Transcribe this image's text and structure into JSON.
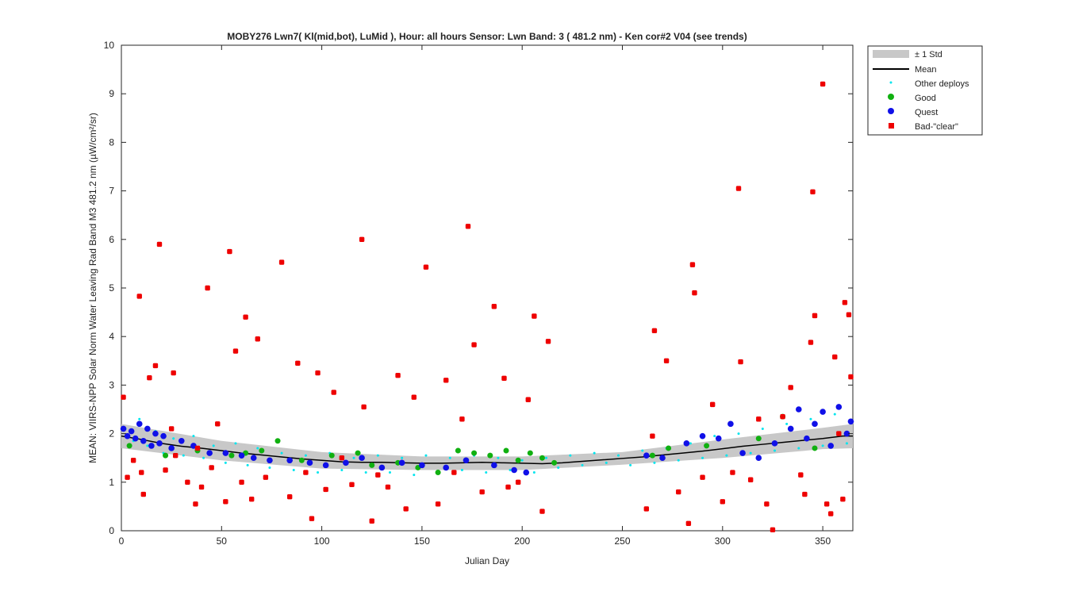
{
  "chart_data": {
    "type": "scatter",
    "title": "MOBY276   Lwn7( Kl(mid,bot), LuMid ),   Hour: all hours  Sensor: Lwn Band: 3 ( 481.2 nm)  - Ken cor#2 V04 (see trends)",
    "xlabel": "Julian Day",
    "ylabel": "MEAN: VIIRS-NPP Solar Norm Water Leaving Rad Band M3 481.2 nm (µW/cm²/sr)",
    "xlim": [
      0,
      365
    ],
    "ylim": [
      0,
      10
    ],
    "x_ticks": [
      "0",
      "50",
      "100",
      "150",
      "200",
      "250",
      "300",
      "350"
    ],
    "y_ticks": [
      "0",
      "1",
      "2",
      "3",
      "4",
      "5",
      "6",
      "7",
      "8",
      "9",
      "10"
    ],
    "grid": false,
    "legend_position": "outside-top-right",
    "legend": [
      "± 1 Std",
      "Mean",
      "Other deploys",
      "Good",
      "Quest",
      "Bad-\"clear\""
    ],
    "colors": {
      "std_band": "#c8c8c8",
      "mean": "#000000",
      "other": "#00e5ee",
      "good": "#10b010",
      "quest": "#1010e8",
      "bad": "#ee0000"
    },
    "series": [
      {
        "name": "Mean",
        "x": [
          0,
          10,
          20,
          30,
          40,
          50,
          60,
          70,
          80,
          90,
          100,
          110,
          120,
          130,
          140,
          150,
          160,
          170,
          180,
          190,
          200,
          210,
          220,
          230,
          240,
          250,
          260,
          270,
          280,
          290,
          300,
          310,
          320,
          330,
          340,
          350,
          360,
          365
        ],
        "y": [
          1.95,
          1.88,
          1.8,
          1.74,
          1.7,
          1.65,
          1.6,
          1.56,
          1.52,
          1.48,
          1.45,
          1.42,
          1.41,
          1.41,
          1.4,
          1.39,
          1.39,
          1.4,
          1.41,
          1.4,
          1.39,
          1.38,
          1.4,
          1.43,
          1.46,
          1.49,
          1.52,
          1.56,
          1.6,
          1.64,
          1.69,
          1.74,
          1.78,
          1.82,
          1.86,
          1.9,
          1.95,
          1.95
        ]
      },
      {
        "name": "± 1 Std",
        "x": [
          0,
          50,
          100,
          150,
          200,
          250,
          300,
          350,
          365
        ],
        "lower": [
          1.7,
          1.45,
          1.28,
          1.25,
          1.25,
          1.36,
          1.5,
          1.68,
          1.7
        ],
        "upper": [
          2.2,
          1.85,
          1.62,
          1.53,
          1.53,
          1.62,
          1.88,
          2.12,
          2.2
        ]
      },
      {
        "name": "Other deploys",
        "x": [
          2,
          6,
          9,
          13,
          17,
          21,
          26,
          31,
          36,
          41,
          46,
          52,
          57,
          63,
          68,
          74,
          80,
          86,
          92,
          98,
          104,
          110,
          116,
          122,
          128,
          134,
          140,
          146,
          152,
          158,
          164,
          170,
          176,
          182,
          188,
          194,
          200,
          206,
          212,
          218,
          224,
          230,
          236,
          242,
          248,
          254,
          260,
          266,
          272,
          278,
          284,
          290,
          296,
          302,
          308,
          314,
          320,
          326,
          332,
          338,
          344,
          350,
          356,
          362
        ],
        "y": [
          2.1,
          1.85,
          2.3,
          1.75,
          2.05,
          1.6,
          1.9,
          1.55,
          1.95,
          1.5,
          1.75,
          1.4,
          1.8,
          1.35,
          1.7,
          1.3,
          1.6,
          1.25,
          1.55,
          1.2,
          1.6,
          1.25,
          1.5,
          1.2,
          1.55,
          1.2,
          1.5,
          1.15,
          1.55,
          1.2,
          1.5,
          1.25,
          1.55,
          1.2,
          1.5,
          1.25,
          1.45,
          1.2,
          1.5,
          1.3,
          1.55,
          1.35,
          1.6,
          1.4,
          1.55,
          1.35,
          1.65,
          1.4,
          1.7,
          1.45,
          1.8,
          1.5,
          1.95,
          1.55,
          2.0,
          1.6,
          2.1,
          1.65,
          2.2,
          1.7,
          2.3,
          1.75,
          2.4,
          1.8
        ]
      },
      {
        "name": "Good",
        "x": [
          4,
          22,
          38,
          55,
          62,
          70,
          78,
          90,
          105,
          118,
          125,
          138,
          148,
          158,
          168,
          176,
          184,
          192,
          198,
          204,
          210,
          216,
          265,
          273,
          292,
          318,
          330,
          346
        ],
        "y": [
          1.75,
          1.55,
          1.65,
          1.55,
          1.6,
          1.65,
          1.85,
          1.45,
          1.55,
          1.6,
          1.35,
          1.4,
          1.3,
          1.2,
          1.65,
          1.6,
          1.55,
          1.65,
          1.45,
          1.6,
          1.5,
          1.4,
          1.55,
          1.7,
          1.75,
          1.9,
          2.35,
          1.7
        ]
      },
      {
        "name": "Quest",
        "x": [
          1,
          3,
          5,
          7,
          9,
          11,
          13,
          15,
          17,
          19,
          21,
          25,
          30,
          36,
          44,
          52,
          60,
          66,
          74,
          84,
          94,
          102,
          112,
          120,
          130,
          140,
          150,
          162,
          172,
          186,
          196,
          202,
          262,
          270,
          282,
          290,
          298,
          304,
          310,
          318,
          326,
          334,
          338,
          342,
          346,
          350,
          354,
          358,
          362,
          364
        ],
        "y": [
          2.1,
          1.95,
          2.05,
          1.9,
          2.2,
          1.85,
          2.1,
          1.75,
          2.0,
          1.8,
          1.95,
          1.7,
          1.85,
          1.75,
          1.6,
          1.6,
          1.55,
          1.5,
          1.45,
          1.45,
          1.4,
          1.35,
          1.4,
          1.5,
          1.3,
          1.4,
          1.35,
          1.3,
          1.45,
          1.35,
          1.25,
          1.2,
          1.55,
          1.5,
          1.8,
          1.95,
          1.9,
          2.2,
          1.6,
          1.5,
          1.8,
          2.1,
          2.5,
          1.9,
          2.2,
          2.45,
          1.75,
          2.55,
          2.0,
          2.25
        ]
      },
      {
        "name": "Bad-\"clear\"",
        "x": [
          1,
          3,
          6,
          9,
          10,
          11,
          14,
          17,
          19,
          22,
          25,
          26,
          27,
          33,
          37,
          38,
          40,
          43,
          45,
          48,
          52,
          54,
          57,
          60,
          62,
          65,
          68,
          72,
          80,
          84,
          88,
          92,
          95,
          98,
          102,
          106,
          110,
          115,
          120,
          121,
          125,
          128,
          133,
          138,
          142,
          146,
          152,
          158,
          162,
          166,
          170,
          173,
          176,
          180,
          186,
          191,
          193,
          198,
          203,
          206,
          210,
          213,
          262,
          265,
          266,
          272,
          278,
          283,
          285,
          286,
          290,
          295,
          300,
          305,
          308,
          309,
          314,
          318,
          322,
          325,
          330,
          334,
          339,
          341,
          344,
          345,
          346,
          350,
          352,
          354,
          356,
          358,
          360,
          361,
          363,
          364
        ],
        "y": [
          2.75,
          1.1,
          1.45,
          4.83,
          1.2,
          0.75,
          3.15,
          3.4,
          5.9,
          1.25,
          2.1,
          3.25,
          1.55,
          1.0,
          0.55,
          1.7,
          0.9,
          5.0,
          1.3,
          2.2,
          0.6,
          5.75,
          3.7,
          1.0,
          4.4,
          0.65,
          3.95,
          1.1,
          5.53,
          0.7,
          3.45,
          1.2,
          0.25,
          3.25,
          0.85,
          2.85,
          1.5,
          0.95,
          6.0,
          2.55,
          0.2,
          1.15,
          0.9,
          3.2,
          0.45,
          2.75,
          5.43,
          0.55,
          3.1,
          1.2,
          2.3,
          6.27,
          3.83,
          0.8,
          4.62,
          3.14,
          0.9,
          1.0,
          2.7,
          4.42,
          0.4,
          3.9,
          0.45,
          1.95,
          4.12,
          3.5,
          0.8,
          0.15,
          5.48,
          4.9,
          1.1,
          2.6,
          0.6,
          1.2,
          7.05,
          3.48,
          1.05,
          2.3,
          0.55,
          0.02,
          2.35,
          2.95,
          1.15,
          0.75,
          3.88,
          6.98,
          4.43,
          9.2,
          0.55,
          0.35,
          3.58,
          2.0,
          0.65,
          4.7,
          4.45,
          3.17
        ]
      }
    ]
  }
}
